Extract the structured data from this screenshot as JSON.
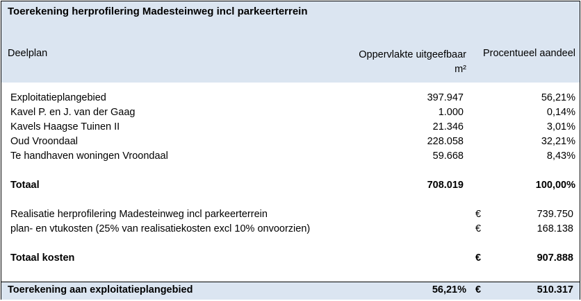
{
  "title": "Toerekening herprofilering Madesteinweg incl parkeerterrein",
  "headers": {
    "deelplan": "Deelplan",
    "oppervlakte_line1": "Oppervlakte uitgeefbaar",
    "oppervlakte_line2": "m²",
    "aandeel": "Procentueel aandeel"
  },
  "rows": [
    {
      "name": "Exploitatieplangebied",
      "area": "397.947",
      "pct": "56,21%"
    },
    {
      "name": "Kavel P. en J. van der Gaag",
      "area": "1.000",
      "pct": "0,14%"
    },
    {
      "name": "Kavels Haagse Tuinen II",
      "area": "21.346",
      "pct": "3,01%"
    },
    {
      "name": "Oud Vroondaal",
      "area": "228.058",
      "pct": "32,21%"
    },
    {
      "name": "Te handhaven woningen Vroondaal",
      "area": "59.668",
      "pct": "8,43%"
    }
  ],
  "totaal": {
    "label": "Totaal",
    "area": "708.019",
    "pct": "100,00%"
  },
  "costs": [
    {
      "name": "Realisatie herprofilering Madesteinweg incl parkeerterrein",
      "currency": "€",
      "amount": "739.750"
    },
    {
      "name": "plan- en vtukosten (25% van realisatiekosten excl 10% onvoorzien)",
      "currency": "€",
      "amount": "168.138"
    }
  ],
  "totaal_kosten": {
    "label": "Totaal kosten",
    "currency": "€",
    "amount": "907.888"
  },
  "footer": {
    "label": "Toerekening aan exploitatieplangebied",
    "pct": "56,21%",
    "currency": "€",
    "amount": "510.317"
  }
}
